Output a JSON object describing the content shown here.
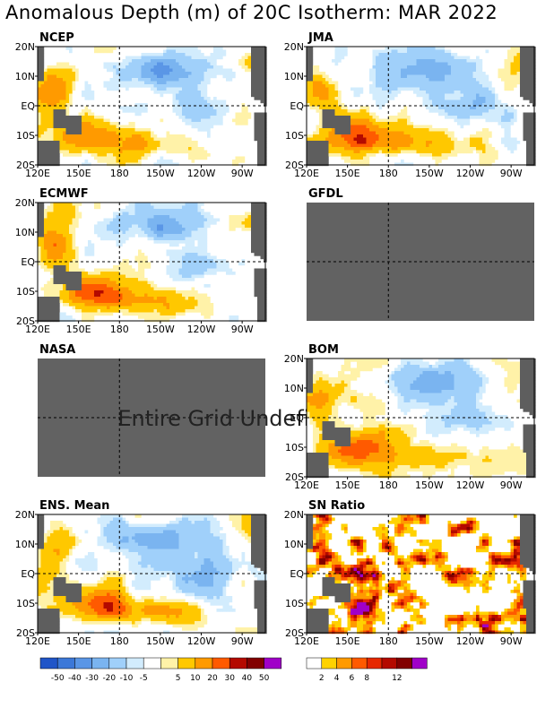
{
  "title": "Anomalous Depth (m) of 20C Isotherm: MAR 2022",
  "colors": {
    "missing": "#626262",
    "land": "#5e5e5e",
    "ocean_bg": "#ffffff",
    "anom_scale": [
      "#2055c8",
      "#3c78d8",
      "#5a96e6",
      "#7ab4f0",
      "#a0d0fa",
      "#d2ecfd",
      "#ffffff",
      "#fff2a8",
      "#ffc800",
      "#ff9a00",
      "#ff5a00",
      "#e62800",
      "#b40a00",
      "#820000",
      "#a000c8"
    ],
    "sn_scale": [
      "#ffffff",
      "#ffd200",
      "#ff9a00",
      "#ff5a00",
      "#e62800",
      "#b40a00",
      "#820000",
      "#a000c8"
    ]
  },
  "chart_data": {
    "type": "heatmap",
    "layout": "4 rows x 2 columns of maps",
    "xticks": [
      "120E",
      "150E",
      "180",
      "150W",
      "120W",
      "90W"
    ],
    "yticks": [
      "20N",
      "10N",
      "EQ",
      "10S",
      "20S"
    ],
    "grid_lines": [
      "equator",
      "date line"
    ],
    "panels": [
      {
        "label": "NCEP",
        "has_data": true,
        "pattern": "anom",
        "seed": 1,
        "show_xticks": true
      },
      {
        "label": "JMA",
        "has_data": true,
        "pattern": "anom",
        "seed": 2,
        "show_xticks": true
      },
      {
        "label": "ECMWF",
        "has_data": true,
        "pattern": "anom",
        "seed": 3,
        "show_xticks": true
      },
      {
        "label": "GFDL",
        "has_data": false,
        "show_xticks": false
      },
      {
        "label": "NASA",
        "has_data": false,
        "show_xticks": false,
        "message": "Entire Grid Undefined"
      },
      {
        "label": "BOM",
        "has_data": true,
        "pattern": "anom",
        "seed": 4,
        "show_xticks": true
      },
      {
        "label": "ENS. Mean",
        "has_data": true,
        "pattern": "anom",
        "seed": 5,
        "show_xticks": true
      },
      {
        "label": "SN Ratio",
        "has_data": true,
        "pattern": "sn",
        "seed": 6,
        "show_xticks": true
      }
    ],
    "colorbars": [
      {
        "name": "anomaly",
        "labels": [
          "-50",
          "-40",
          "-30",
          "-20",
          "-10",
          "-5",
          "5",
          "10",
          "20",
          "30",
          "40",
          "50"
        ]
      },
      {
        "name": "sn_ratio",
        "labels": [
          "2",
          "4",
          "6",
          "8",
          "12"
        ]
      }
    ]
  }
}
